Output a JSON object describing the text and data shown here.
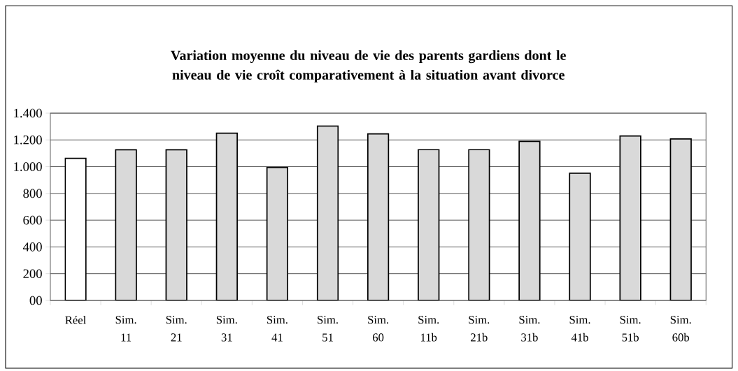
{
  "chart_data": {
    "type": "bar",
    "title": "Variation moyenne du niveau de vie des parents gardiens dont le niveau de vie croît comparativement à la situation avant divorce",
    "categories": [
      "Réel",
      "Sim. 11",
      "Sim. 21",
      "Sim. 31",
      "Sim. 41",
      "Sim. 51",
      "Sim. 60",
      "Sim. 11b",
      "Sim. 21b",
      "Sim. 31b",
      "Sim. 41b",
      "Sim. 51b",
      "Sim. 60b"
    ],
    "values": [
      1062,
      1126,
      1126,
      1251,
      995,
      1304,
      1245,
      1127,
      1127,
      1189,
      951,
      1229,
      1207
    ],
    "colors": [
      "#ffffff",
      "#d9d9d9",
      "#d9d9d9",
      "#d9d9d9",
      "#d9d9d9",
      "#d9d9d9",
      "#d9d9d9",
      "#d9d9d9",
      "#d9d9d9",
      "#d9d9d9",
      "#d9d9d9",
      "#d9d9d9",
      "#d9d9d9"
    ],
    "ylim": [
      0,
      1400
    ],
    "yticks": [
      {
        "value": 0,
        "label": "00"
      },
      200,
      400,
      600,
      800,
      {
        "value": 1000,
        "label": "1.000"
      },
      {
        "value": 1200,
        "label": "1.200"
      },
      {
        "value": 1400,
        "label": "1.400"
      }
    ],
    "grid": "y"
  }
}
